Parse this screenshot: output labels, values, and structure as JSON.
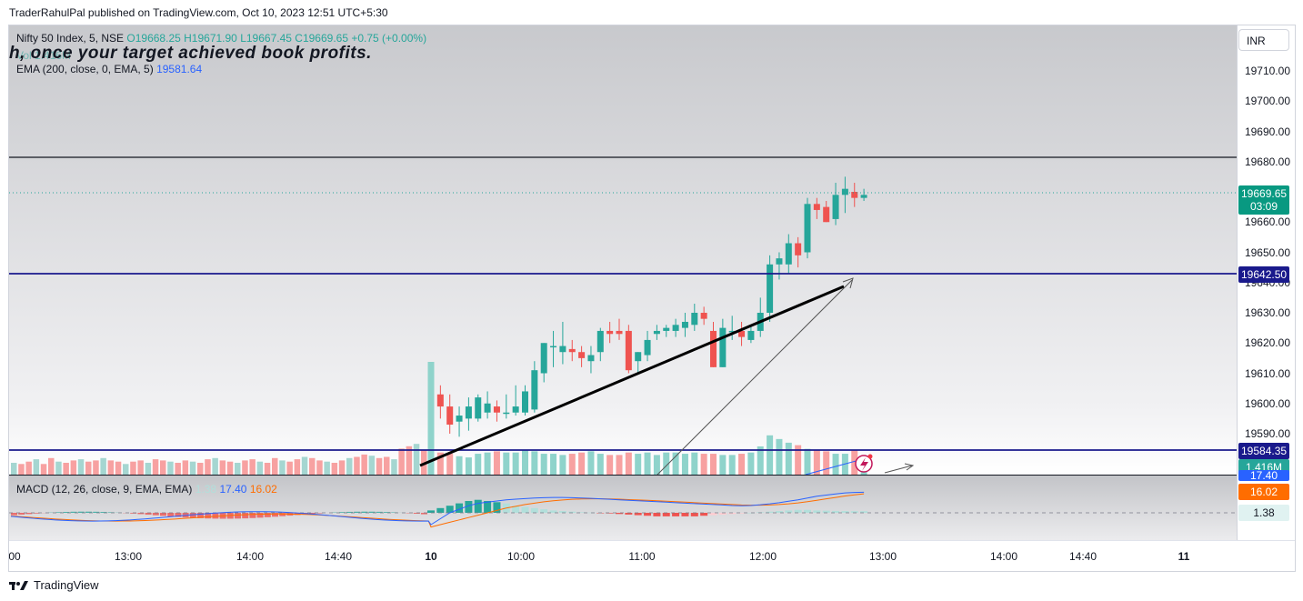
{
  "publisher": "TraderRahulPal published on TradingView.com, Oct 10, 2023 12:51 UTC+5:30",
  "currency": "INR",
  "symbol": {
    "name": "Nifty 50 Index, 5, NSE",
    "open": "O19668.25",
    "high": "H19671.90",
    "low": "L19667.45",
    "close": "C19669.65",
    "change": "+0.75 (+0.00%)"
  },
  "overlay_text": "h, once your target achieved book profits.",
  "vol_legend": "Vol 1.416M",
  "ema_legend": {
    "label": "EMA (200, close, 0, EMA, 5)",
    "value": "19581.64"
  },
  "macd_legend": {
    "label": "MACD (12, 26, close, 9, EMA, EMA)",
    "hist": "1.38",
    "macd": "17.40",
    "signal": "16.02"
  },
  "price_ticks": [
    "19710.00",
    "19700.00",
    "19690.00",
    "19680.00",
    "19660.00",
    "19650.00",
    "19640.00",
    "19630.00",
    "19620.00",
    "19610.00",
    "19600.00",
    "19590.00"
  ],
  "price_tags": {
    "last_price": "19669.65",
    "countdown": "03:09",
    "level_mid": "19642.50",
    "level_low": "19584.35",
    "volume": "1.416M",
    "macd": "17.40",
    "signal": "16.02",
    "hist": "1.38"
  },
  "time_ticks": [
    "00",
    "13:00",
    "14:00",
    "14:40",
    "10",
    "10:00",
    "11:00",
    "12:00",
    "13:00",
    "14:00",
    "14:40",
    "11"
  ],
  "colors": {
    "up": "#26a69a",
    "down": "#ef5350",
    "level_blue": "#1a1a8c",
    "macd_line": "#2962ff",
    "signal_line": "#ff6d00"
  },
  "footer": "TradingView",
  "chart_data": {
    "type": "candlestick",
    "timeframe": "5",
    "horizontal_lines": [
      19681.0,
      19642.5,
      19584.35
    ],
    "candles": [
      {
        "o": 19589,
        "h": 19613,
        "l": 19583,
        "c": 19609
      },
      {
        "o": 19603,
        "h": 19606,
        "l": 19595,
        "c": 19599
      },
      {
        "o": 19599,
        "h": 19603,
        "l": 19590,
        "c": 19593
      },
      {
        "o": 19594,
        "h": 19599,
        "l": 19589,
        "c": 19596
      },
      {
        "o": 19595,
        "h": 19602,
        "l": 19591,
        "c": 19599
      },
      {
        "o": 19595,
        "h": 19603,
        "l": 19594,
        "c": 19602
      },
      {
        "o": 19597,
        "h": 19604,
        "l": 19595,
        "c": 19600
      },
      {
        "o": 19599,
        "h": 19601,
        "l": 19594,
        "c": 19597
      },
      {
        "o": 19597,
        "h": 19603,
        "l": 19595,
        "c": 19597
      },
      {
        "o": 19597,
        "h": 19606,
        "l": 19596,
        "c": 19599
      },
      {
        "o": 19597,
        "h": 19606,
        "l": 19596,
        "c": 19604
      },
      {
        "o": 19598,
        "h": 19614,
        "l": 19597,
        "c": 19611
      },
      {
        "o": 19610,
        "h": 19620,
        "l": 19607,
        "c": 19620
      },
      {
        "o": 19619,
        "h": 19624,
        "l": 19612,
        "c": 19619
      },
      {
        "o": 19617,
        "h": 19627,
        "l": 19613,
        "c": 19619
      },
      {
        "o": 19618,
        "h": 19621,
        "l": 19614,
        "c": 19617
      },
      {
        "o": 19617,
        "h": 19619,
        "l": 19612,
        "c": 19615
      },
      {
        "o": 19614,
        "h": 19619,
        "l": 19610,
        "c": 19616
      },
      {
        "o": 19617,
        "h": 19625,
        "l": 19614,
        "c": 19624
      },
      {
        "o": 19624,
        "h": 19627,
        "l": 19620,
        "c": 19623
      },
      {
        "o": 19624,
        "h": 19628,
        "l": 19621,
        "c": 19623
      },
      {
        "o": 19624,
        "h": 19626,
        "l": 19610,
        "c": 19611
      },
      {
        "o": 19614,
        "h": 19617,
        "l": 19610,
        "c": 19617
      },
      {
        "o": 19616,
        "h": 19624,
        "l": 19614,
        "c": 19621
      },
      {
        "o": 19623,
        "h": 19626,
        "l": 19621,
        "c": 19624
      },
      {
        "o": 19624,
        "h": 19626,
        "l": 19622,
        "c": 19625
      },
      {
        "o": 19624,
        "h": 19628,
        "l": 19622,
        "c": 19626
      },
      {
        "o": 19625,
        "h": 19630,
        "l": 19622,
        "c": 19627
      },
      {
        "o": 19626,
        "h": 19633,
        "l": 19624,
        "c": 19630
      },
      {
        "o": 19630,
        "h": 19632,
        "l": 19626,
        "c": 19628
      },
      {
        "o": 19624,
        "h": 19627,
        "l": 19612,
        "c": 19612
      },
      {
        "o": 19612,
        "h": 19628,
        "l": 19612,
        "c": 19625
      },
      {
        "o": 19624,
        "h": 19629,
        "l": 19621,
        "c": 19624
      },
      {
        "o": 19624,
        "h": 19627,
        "l": 19619,
        "c": 19622
      },
      {
        "o": 19621,
        "h": 19626,
        "l": 19620,
        "c": 19624
      },
      {
        "o": 19624,
        "h": 19635,
        "l": 19622,
        "c": 19630
      },
      {
        "o": 19630,
        "h": 19649,
        "l": 19627,
        "c": 19646
      },
      {
        "o": 19646,
        "h": 19650,
        "l": 19641,
        "c": 19648
      },
      {
        "o": 19646,
        "h": 19656,
        "l": 19643,
        "c": 19653
      },
      {
        "o": 19653,
        "h": 19655,
        "l": 19645,
        "c": 19649
      },
      {
        "o": 19650,
        "h": 19668,
        "l": 19648,
        "c": 19666
      },
      {
        "o": 19666,
        "h": 19668,
        "l": 19661,
        "c": 19664
      },
      {
        "o": 19665,
        "h": 19667,
        "l": 19660,
        "c": 19660
      },
      {
        "o": 19661,
        "h": 19673,
        "l": 19659,
        "c": 19669
      },
      {
        "o": 19669,
        "h": 19675,
        "l": 19663,
        "c": 19671
      },
      {
        "o": 19670,
        "h": 19673,
        "l": 19665,
        "c": 19668
      },
      {
        "o": 19668,
        "h": 19671,
        "l": 19667,
        "c": 19669
      }
    ],
    "volume": [
      22,
      18,
      17,
      15,
      14,
      17,
      18,
      19,
      18,
      18,
      20,
      19,
      17,
      17,
      16,
      17,
      18,
      19,
      17,
      16,
      16,
      18,
      17,
      18,
      16,
      18,
      18,
      17,
      18,
      17,
      17,
      16,
      16,
      17,
      18,
      23,
      32,
      29,
      26,
      24,
      21,
      20,
      19,
      17,
      17,
      20,
      15
    ],
    "macd_hist": [
      2,
      4,
      6,
      8,
      10,
      11,
      10,
      9,
      8,
      6,
      5,
      4,
      3,
      2,
      1.5,
      1,
      0.5,
      0.2,
      -0.2,
      -0.5,
      -1,
      -1.5,
      -2,
      -2.5,
      -3,
      -3,
      -3,
      -3,
      -3,
      -2.5,
      -2,
      -1.5,
      -1,
      -0.5,
      0,
      0.5,
      1,
      1.5,
      2,
      2.5,
      2.5,
      2,
      1.8,
      1.6,
      1.5,
      1.4,
      1.38
    ],
    "macd_line": [
      -10,
      -5,
      0,
      3,
      6,
      8,
      9,
      10,
      11,
      11.5,
      12,
      12.5,
      12.8,
      13,
      13,
      12.8,
      12.5,
      12.2,
      11.8,
      11.4,
      11,
      10.6,
      10.2,
      9.8,
      9.4,
      9,
      8.6,
      8.2,
      7.8,
      7.4,
      7,
      6.6,
      6.2,
      6,
      6.2,
      6.8,
      7.6,
      8.6,
      9.8,
      11,
      12.5,
      14,
      15,
      16,
      16.8,
      17.2,
      17.4
    ],
    "signal_line": [
      -12,
      -10,
      -8,
      -6,
      -4,
      -2,
      0,
      2,
      4,
      5.5,
      7,
      8.2,
      9.3,
      10.2,
      10.9,
      11.4,
      11.7,
      11.8,
      11.8,
      11.7,
      11.5,
      11.2,
      10.9,
      10.6,
      10.2,
      9.8,
      9.4,
      9,
      8.6,
      8.2,
      7.8,
      7.4,
      7,
      6.6,
      6.4,
      6.4,
      6.6,
      7,
      7.6,
      8.4,
      9.4,
      10.6,
      11.8,
      13,
      14.2,
      15.2,
      16.02
    ]
  }
}
